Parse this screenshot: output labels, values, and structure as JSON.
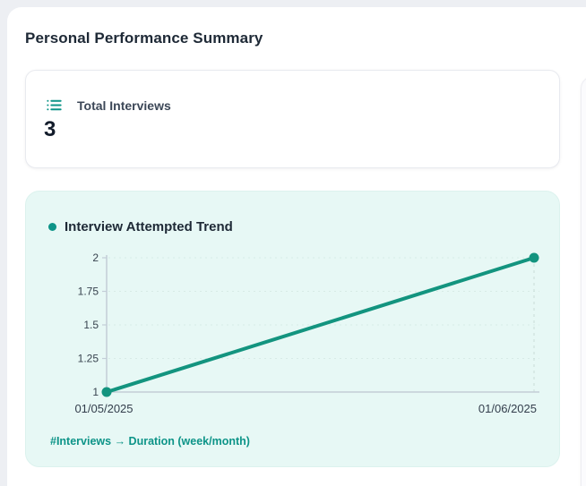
{
  "page": {
    "title": "Personal Performance Summary"
  },
  "stat_card": {
    "icon": "list-icon",
    "label": "Total Interviews",
    "value": "3"
  },
  "chart_card": {
    "title": "Interview Attempted Trend",
    "footer": "#Interviews → Duration (week/month)"
  },
  "chart_data": {
    "type": "line",
    "title": "Interview Attempted Trend",
    "x": [
      "01/05/2025",
      "01/06/2025"
    ],
    "series": [
      {
        "name": "Interviews",
        "values": [
          1,
          2
        ]
      }
    ],
    "ylim": [
      1,
      2
    ],
    "yticks": [
      1,
      1.25,
      1.5,
      1.75,
      2
    ],
    "ytick_labels": [
      "1",
      "1.25",
      "1.5",
      "1.75",
      "2"
    ],
    "grid": true,
    "legend_position": "none",
    "xlabel": "",
    "ylabel": "",
    "line_color": "#13947f",
    "marker_radius": 5.5
  },
  "colors": {
    "accent": "#0d9488",
    "chart_bg": "#e7f8f5",
    "page_bg": "#edeff3",
    "axis": "#c3cdd7",
    "gridline": "#d7ebe6",
    "dashed_gridline": "#c9ddd8"
  }
}
